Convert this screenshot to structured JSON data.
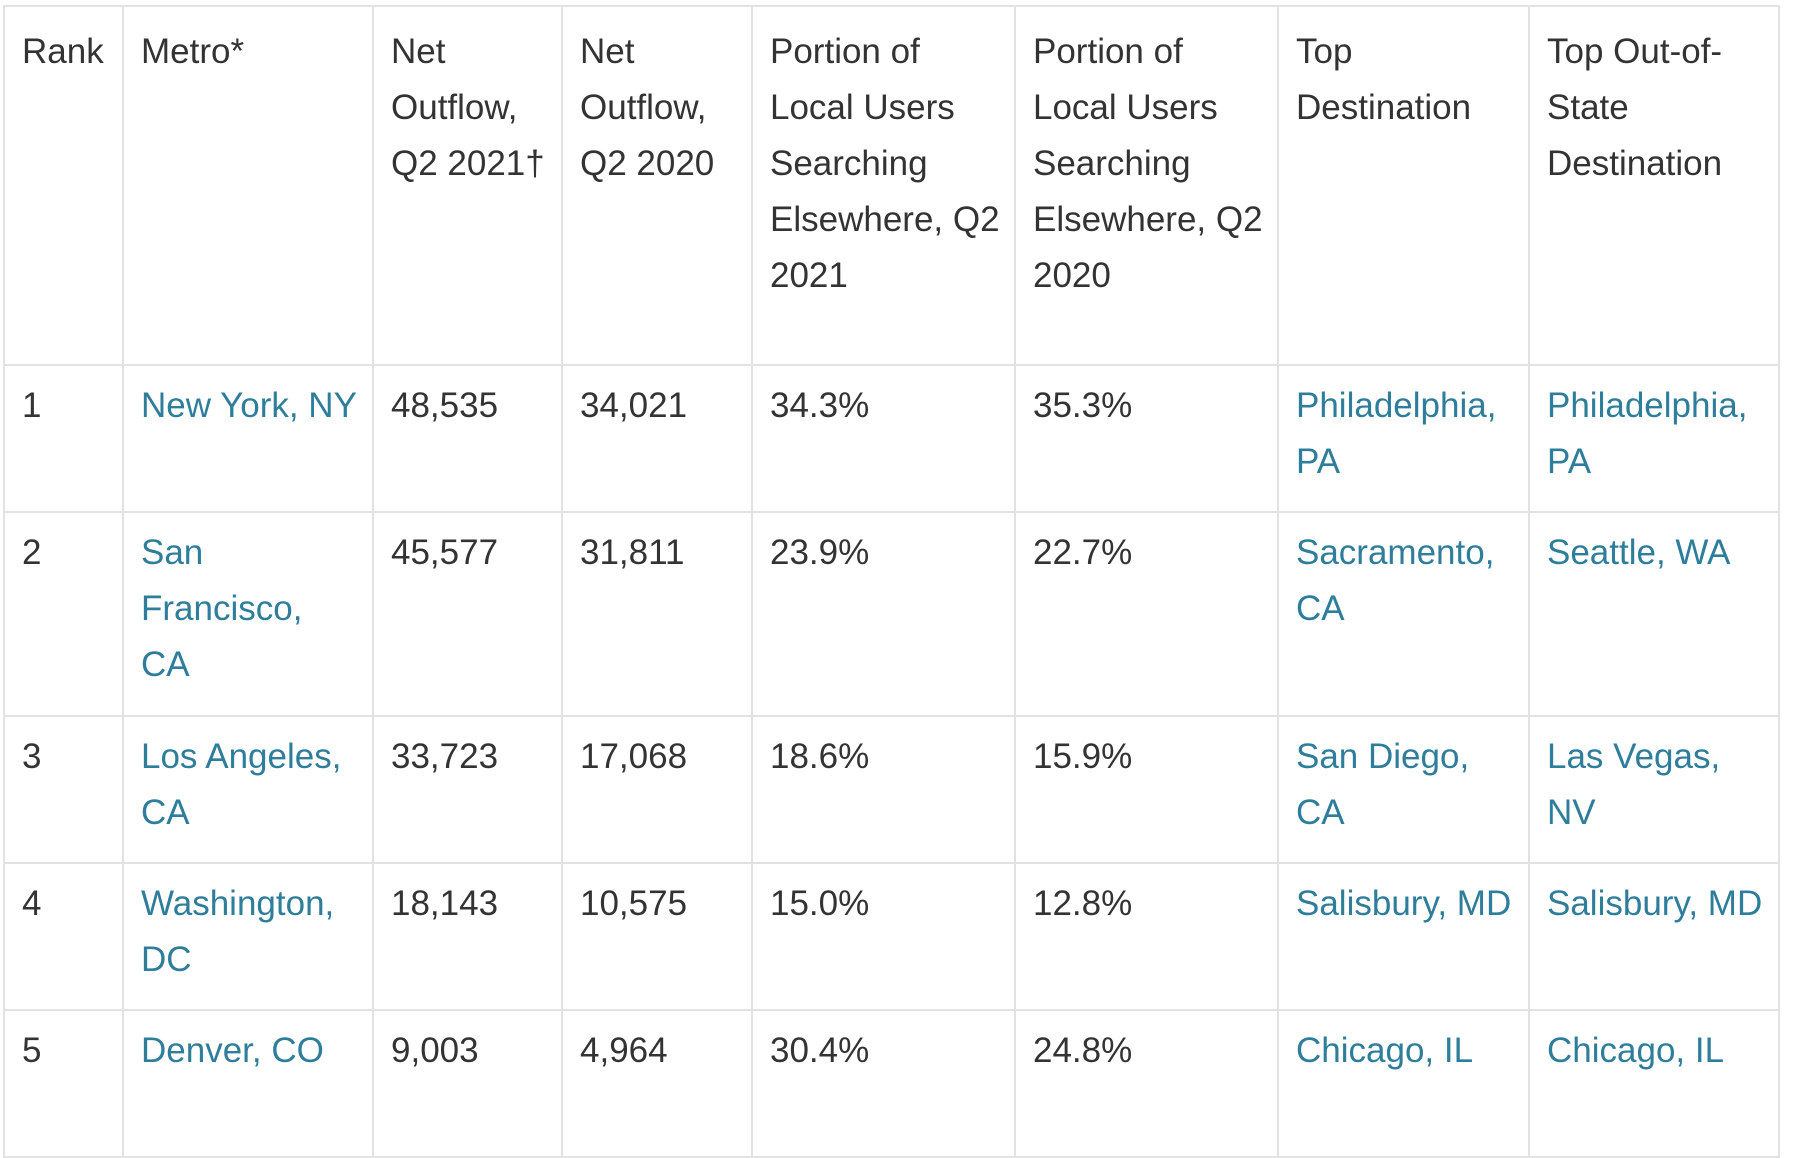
{
  "table": {
    "headers": [
      "Rank",
      "Metro*",
      "Net Outflow, Q2 2021†",
      "Net Outflow, Q2 2020",
      "Portion of Local Users Searching Elsewhere, Q2 2021",
      "Portion of Local Users Searching Elsewhere, Q2 2020",
      "Top Destination",
      "Top Out-of-State Destination"
    ],
    "rows": [
      {
        "rank": "1",
        "metro": "New York, NY",
        "outflow_2021": "48,535",
        "outflow_2020": "34,021",
        "portion_2021": "34.3%",
        "portion_2020": "35.3%",
        "top_destination": "Philadelphia, PA",
        "top_out_of_state": "Philadelphia, PA"
      },
      {
        "rank": "2",
        "metro": "San Francisco, CA",
        "outflow_2021": "45,577",
        "outflow_2020": "31,811",
        "portion_2021": "23.9%",
        "portion_2020": "22.7%",
        "top_destination": "Sacramento, CA",
        "top_out_of_state": "Seattle, WA"
      },
      {
        "rank": "3",
        "metro": "Los Angeles, CA",
        "outflow_2021": "33,723",
        "outflow_2020": "17,068",
        "portion_2021": "18.6%",
        "portion_2020": "15.9%",
        "top_destination": "San Diego, CA",
        "top_out_of_state": "Las Vegas, NV"
      },
      {
        "rank": "4",
        "metro": "Washington, DC",
        "outflow_2021": "18,143",
        "outflow_2020": "10,575",
        "portion_2021": "15.0%",
        "portion_2020": "12.8%",
        "top_destination": "Salisbury, MD",
        "top_out_of_state": "Salisbury, MD"
      },
      {
        "rank": "5",
        "metro": "Denver, CO",
        "outflow_2021": "9,003",
        "outflow_2020": "4,964",
        "portion_2021": "30.4%",
        "portion_2020": "24.8%",
        "top_destination": "Chicago, IL",
        "top_out_of_state": "Chicago, IL"
      }
    ]
  },
  "colors": {
    "link": "#2e7d9a",
    "text": "#333333",
    "border": "#e2e2e2"
  }
}
